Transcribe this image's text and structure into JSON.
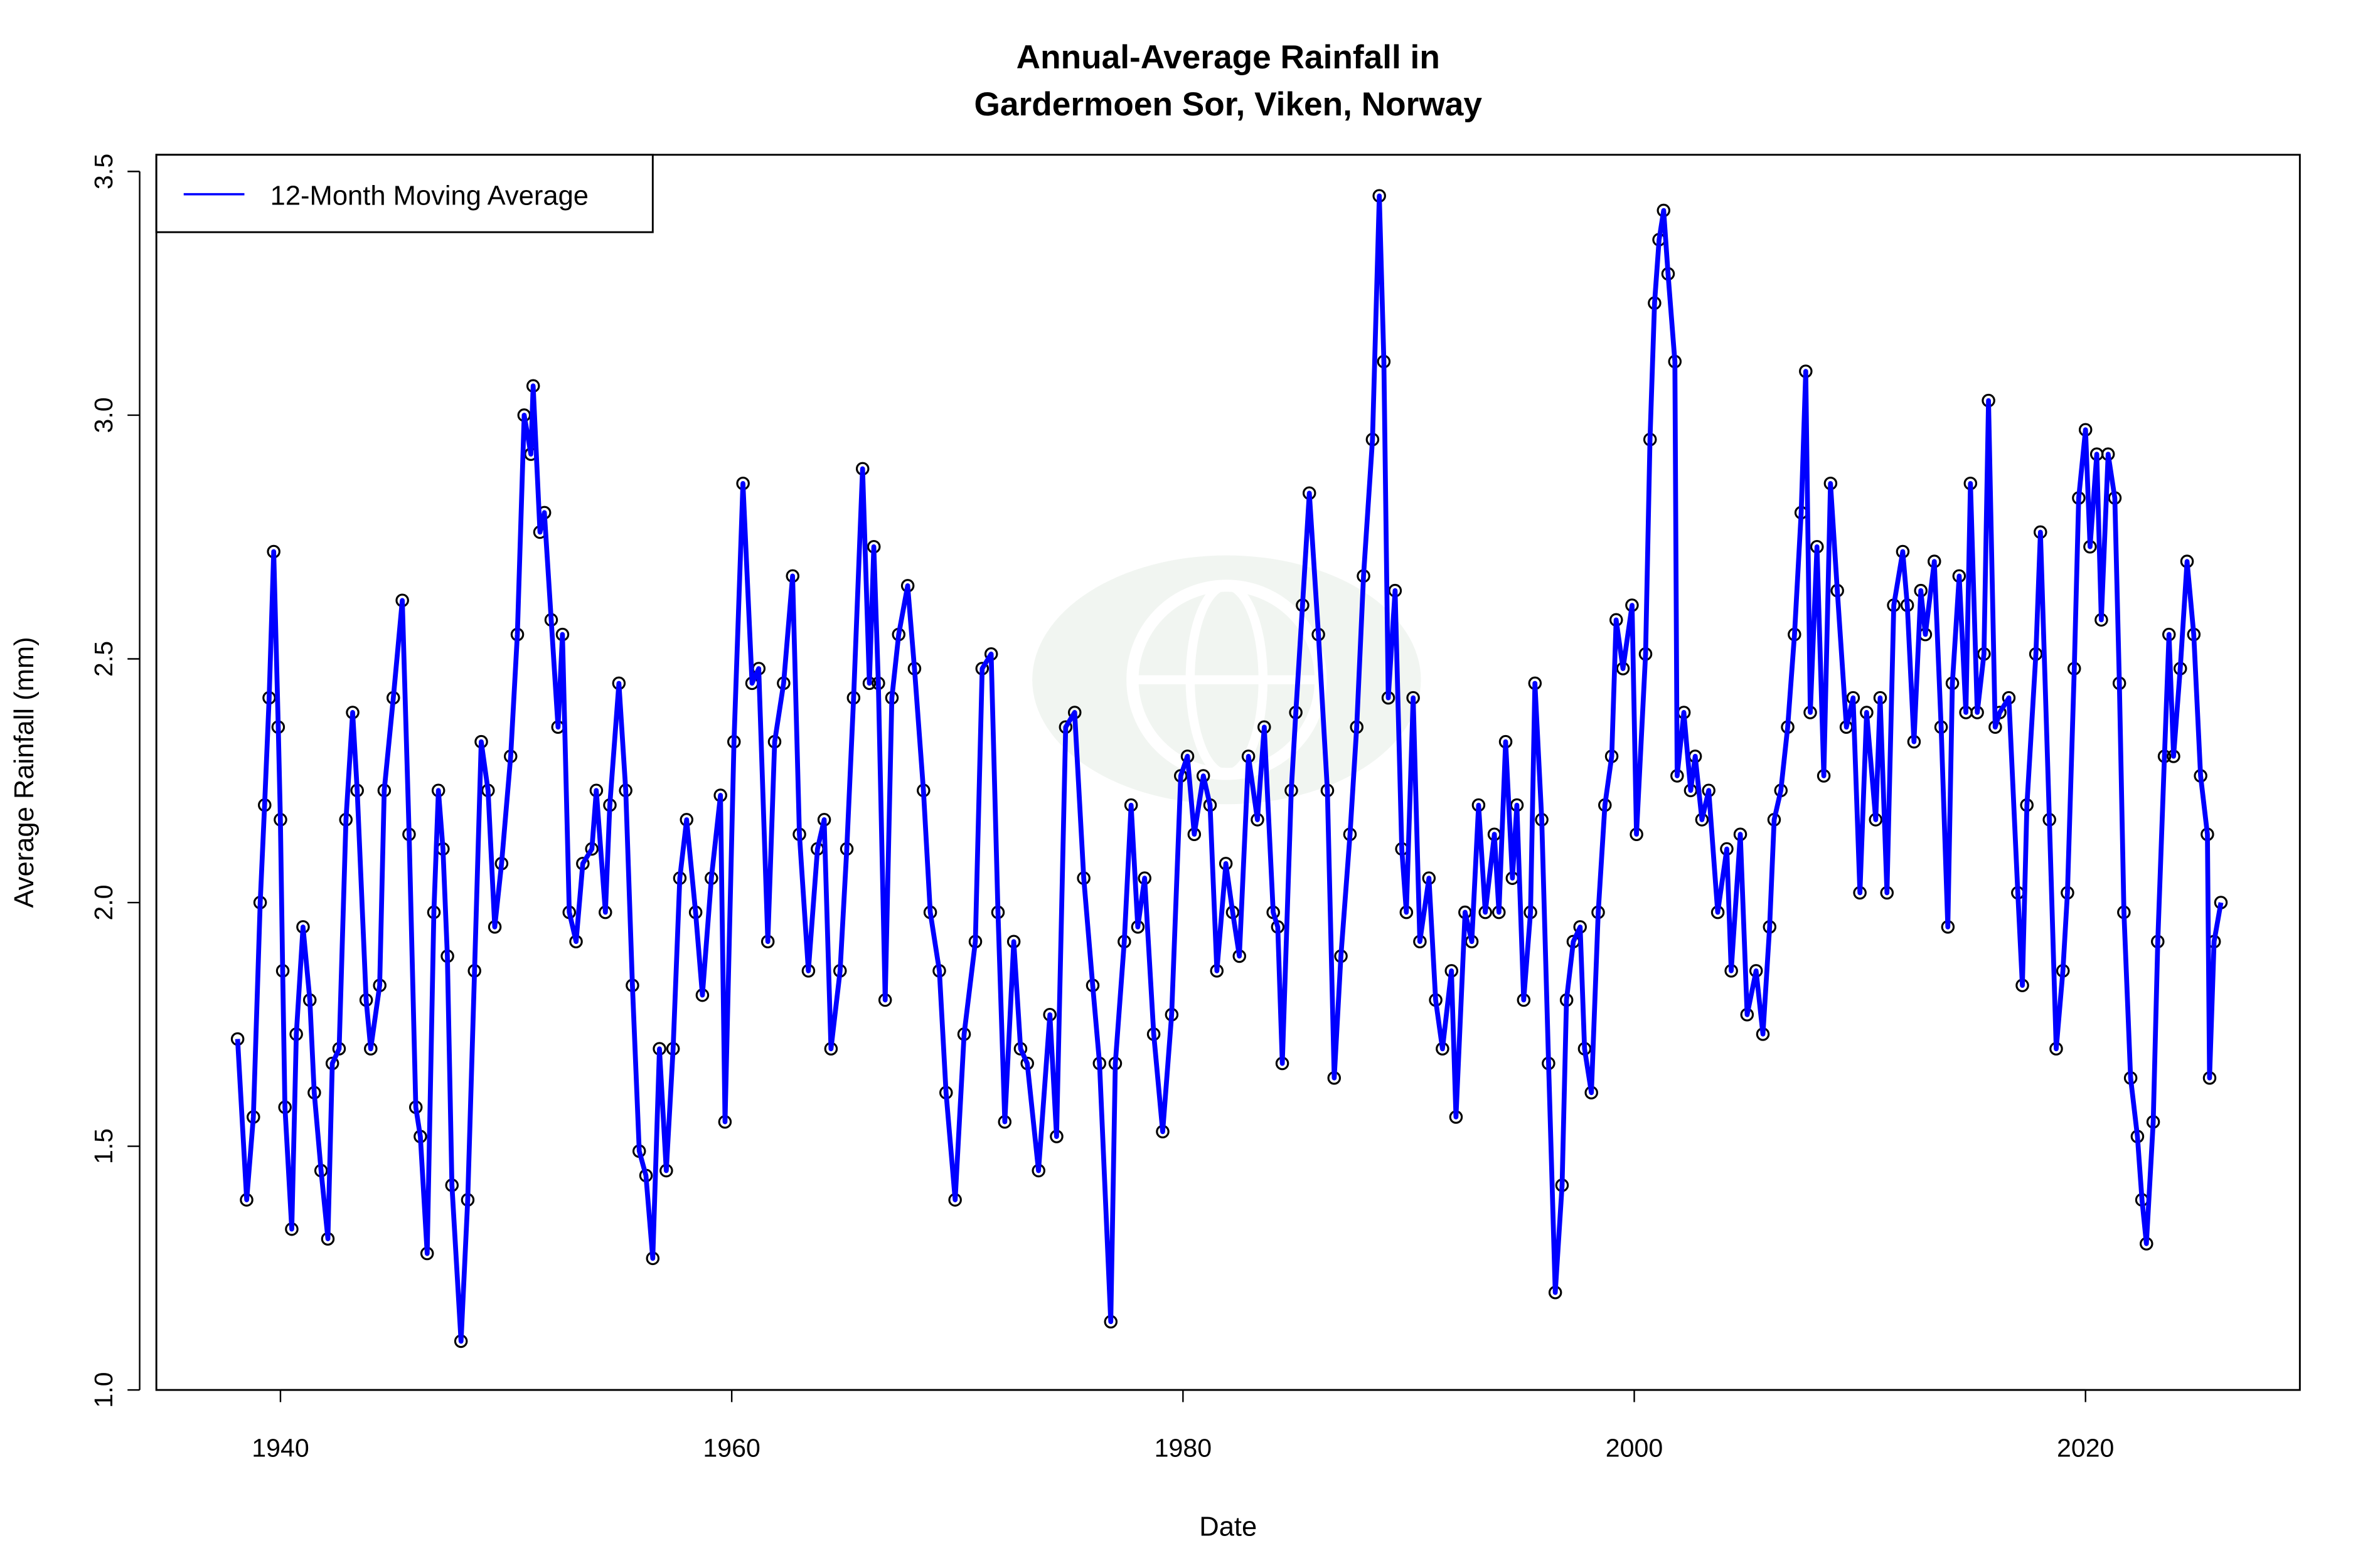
{
  "chart_data": {
    "type": "line",
    "title": [
      "Annual-Average Rainfall in",
      "Gardermoen Sor, Viken, Norway"
    ],
    "xlabel": "Date",
    "ylabel": "Average Rainfall (mm)",
    "xlim": [
      1934.5,
      2029.5
    ],
    "ylim": [
      1.0,
      3.5
    ],
    "x_ticks": [
      "1940",
      "1960",
      "1980",
      "2000",
      "2020"
    ],
    "y_ticks": [
      "1.0",
      "1.5",
      "2.0",
      "2.5",
      "3.0",
      "3.5"
    ],
    "grid": false,
    "legend_position": "top-left",
    "markers": "open black circles",
    "colors": {
      "line": "#0000ff",
      "marker": "#000000"
    },
    "series": [
      {
        "name": "12-Month Moving Average",
        "x": [
          1938.1,
          1938.5,
          1938.8,
          1939.1,
          1939.3,
          1939.5,
          1939.7,
          1939.9,
          1940.0,
          1940.1,
          1940.2,
          1940.5,
          1940.7,
          1941.0,
          1941.3,
          1941.5,
          1941.8,
          1942.1,
          1942.3,
          1942.6,
          1942.9,
          1943.2,
          1943.4,
          1943.8,
          1944.0,
          1944.4,
          1944.6,
          1945.0,
          1945.4,
          1945.7,
          1946.0,
          1946.2,
          1946.5,
          1946.8,
          1947.0,
          1947.2,
          1947.4,
          1947.6,
          1948.0,
          1948.3,
          1948.6,
          1948.9,
          1949.2,
          1949.5,
          1949.8,
          1950.2,
          1950.5,
          1950.8,
          1951.1,
          1951.2,
          1951.5,
          1951.7,
          1952.0,
          1952.3,
          1952.5,
          1952.8,
          1953.1,
          1953.4,
          1953.8,
          1954.0,
          1954.4,
          1954.6,
          1955.0,
          1955.3,
          1955.6,
          1955.9,
          1956.2,
          1956.5,
          1956.8,
          1957.1,
          1957.4,
          1957.7,
          1958.0,
          1958.4,
          1958.7,
          1959.1,
          1959.5,
          1959.7,
          1960.1,
          1960.5,
          1960.9,
          1961.2,
          1961.6,
          1961.9,
          1962.3,
          1962.7,
          1963.0,
          1963.4,
          1963.8,
          1964.1,
          1964.4,
          1964.8,
          1965.1,
          1965.4,
          1965.8,
          1966.1,
          1966.3,
          1966.5,
          1966.8,
          1967.1,
          1967.4,
          1967.8,
          1968.1,
          1968.5,
          1968.8,
          1969.2,
          1969.5,
          1969.9,
          1970.3,
          1970.8,
          1971.1,
          1971.5,
          1971.8,
          1972.1,
          1972.5,
          1972.8,
          1973.1,
          1973.6,
          1974.1,
          1974.4,
          1974.8,
          1975.2,
          1975.6,
          1976.0,
          1976.3,
          1976.8,
          1977.0,
          1977.4,
          1977.7,
          1978.0,
          1978.3,
          1978.7,
          1979.1,
          1979.5,
          1979.9,
          1980.2,
          1980.5,
          1980.9,
          1981.2,
          1981.5,
          1981.9,
          1982.2,
          1982.5,
          1982.9,
          1983.3,
          1983.6,
          1984.0,
          1984.2,
          1984.4,
          1984.8,
          1985.0,
          1985.3,
          1985.6,
          1986.0,
          1986.4,
          1986.7,
          1987.0,
          1987.4,
          1987.7,
          1988.0,
          1988.4,
          1988.7,
          1988.9,
          1989.1,
          1989.4,
          1989.7,
          1989.9,
          1990.2,
          1990.5,
          1990.9,
          1991.2,
          1991.5,
          1991.9,
          1992.1,
          1992.5,
          1992.8,
          1993.1,
          1993.4,
          1993.8,
          1994.0,
          1994.3,
          1994.6,
          1994.8,
          1995.1,
          1995.4,
          1995.6,
          1995.9,
          1996.2,
          1996.5,
          1996.8,
          1997.0,
          1997.3,
          1997.6,
          1997.8,
          1998.1,
          1998.4,
          1998.7,
          1999.0,
          1999.2,
          1999.5,
          1999.9,
          2000.1,
          2000.5,
          2000.7,
          2000.9,
          2001.1,
          2001.3,
          2001.5,
          2001.8,
          2001.9,
          2002.2,
          2002.5,
          2002.7,
          2003.0,
          2003.3,
          2003.7,
          2004.1,
          2004.3,
          2004.7,
          2005.0,
          2005.4,
          2005.7,
          2006.0,
          2006.2,
          2006.5,
          2006.8,
          2007.1,
          2007.4,
          2007.6,
          2007.8,
          2008.1,
          2008.4,
          2008.7,
          2009.0,
          2009.4,
          2009.7,
          2010.0,
          2010.3,
          2010.7,
          2010.9,
          2011.2,
          2011.5,
          2011.9,
          2012.1,
          2012.4,
          2012.7,
          2012.9,
          2013.3,
          2013.6,
          2013.9,
          2014.1,
          2014.4,
          2014.7,
          2014.9,
          2015.2,
          2015.5,
          2015.7,
          2016.0,
          2016.2,
          2016.6,
          2017.0,
          2017.2,
          2017.4,
          2017.8,
          2018.0,
          2018.4,
          2018.7,
          2019.0,
          2019.2,
          2019.5,
          2019.7,
          2020.0,
          2020.2,
          2020.5,
          2020.7,
          2021.0,
          2021.3,
          2021.5,
          2021.7,
          2022.0,
          2022.3,
          2022.5,
          2022.7,
          2023.0,
          2023.2,
          2023.5,
          2023.7,
          2023.9,
          2024.2,
          2024.5,
          2024.8,
          2025.1,
          2025.4,
          2025.5,
          2025.7,
          2026.0
        ],
        "y": [
          1.72,
          1.39,
          1.56,
          2.0,
          2.2,
          2.42,
          2.72,
          2.36,
          2.17,
          1.86,
          1.58,
          1.33,
          1.73,
          1.95,
          1.8,
          1.61,
          1.45,
          1.31,
          1.67,
          1.7,
          2.17,
          2.39,
          2.23,
          1.8,
          1.7,
          1.83,
          2.23,
          2.42,
          2.62,
          2.14,
          1.58,
          1.52,
          1.28,
          1.98,
          2.23,
          2.11,
          1.89,
          1.42,
          1.1,
          1.39,
          1.86,
          2.33,
          2.23,
          1.95,
          2.08,
          2.3,
          2.55,
          3.0,
          2.92,
          3.06,
          2.76,
          2.8,
          2.58,
          2.36,
          2.55,
          1.98,
          1.92,
          2.08,
          2.11,
          2.23,
          1.98,
          2.2,
          2.45,
          2.23,
          1.83,
          1.49,
          1.44,
          1.27,
          1.7,
          1.45,
          1.7,
          2.05,
          2.17,
          1.98,
          1.81,
          2.05,
          2.22,
          1.55,
          2.33,
          2.86,
          2.45,
          2.48,
          1.92,
          2.33,
          2.45,
          2.67,
          2.14,
          1.86,
          2.11,
          2.17,
          1.7,
          1.86,
          2.11,
          2.42,
          2.89,
          2.45,
          2.73,
          2.45,
          1.8,
          2.42,
          2.55,
          2.65,
          2.48,
          2.23,
          1.98,
          1.86,
          1.61,
          1.39,
          1.73,
          1.92,
          2.48,
          2.51,
          1.98,
          1.55,
          1.92,
          1.7,
          1.67,
          1.45,
          1.77,
          1.52,
          2.36,
          2.39,
          2.05,
          1.83,
          1.67,
          1.14,
          1.67,
          1.92,
          2.2,
          1.95,
          2.05,
          1.73,
          1.53,
          1.77,
          2.26,
          2.3,
          2.14,
          2.26,
          2.2,
          1.86,
          2.08,
          1.98,
          1.89,
          2.3,
          2.17,
          2.36,
          1.98,
          1.95,
          1.67,
          2.23,
          2.39,
          2.61,
          2.84,
          2.55,
          2.23,
          1.64,
          1.89,
          2.14,
          2.36,
          2.67,
          2.95,
          3.45,
          3.11,
          2.42,
          2.64,
          2.11,
          1.98,
          2.42,
          1.92,
          2.05,
          1.8,
          1.7,
          1.86,
          1.56,
          1.98,
          1.92,
          2.2,
          1.98,
          2.14,
          1.98,
          2.33,
          2.05,
          2.2,
          1.8,
          1.98,
          2.45,
          2.17,
          1.67,
          1.2,
          1.42,
          1.8,
          1.92,
          1.95,
          1.7,
          1.61,
          1.98,
          2.2,
          2.3,
          2.58,
          2.48,
          2.61,
          2.14,
          2.51,
          2.95,
          3.23,
          3.36,
          3.42,
          3.29,
          3.11,
          2.26,
          2.39,
          2.23,
          2.3,
          2.17,
          2.23,
          1.98,
          2.11,
          1.86,
          2.14,
          1.77,
          1.86,
          1.73,
          1.95,
          2.17,
          2.23,
          2.36,
          2.55,
          2.8,
          3.09,
          2.39,
          2.73,
          2.26,
          2.86,
          2.64,
          2.36,
          2.42,
          2.02,
          2.39,
          2.17,
          2.42,
          2.02,
          2.61,
          2.72,
          2.61,
          2.33,
          2.64,
          2.55,
          2.7,
          2.36,
          1.95,
          2.45,
          2.67,
          2.39,
          2.86,
          2.39,
          2.51,
          3.03,
          2.36,
          2.39,
          2.42,
          2.02,
          1.83,
          2.2,
          2.51,
          2.76,
          2.17,
          1.7,
          1.86,
          2.02,
          2.48,
          2.83,
          2.97,
          2.73,
          2.92,
          2.58,
          2.92,
          2.83,
          2.45,
          1.98,
          1.64,
          1.52,
          1.39,
          1.3,
          1.55,
          1.92,
          2.3,
          2.55,
          2.3,
          2.48,
          2.7,
          2.55,
          2.26,
          2.14,
          1.64,
          1.92,
          2.0
        ]
      }
    ]
  }
}
